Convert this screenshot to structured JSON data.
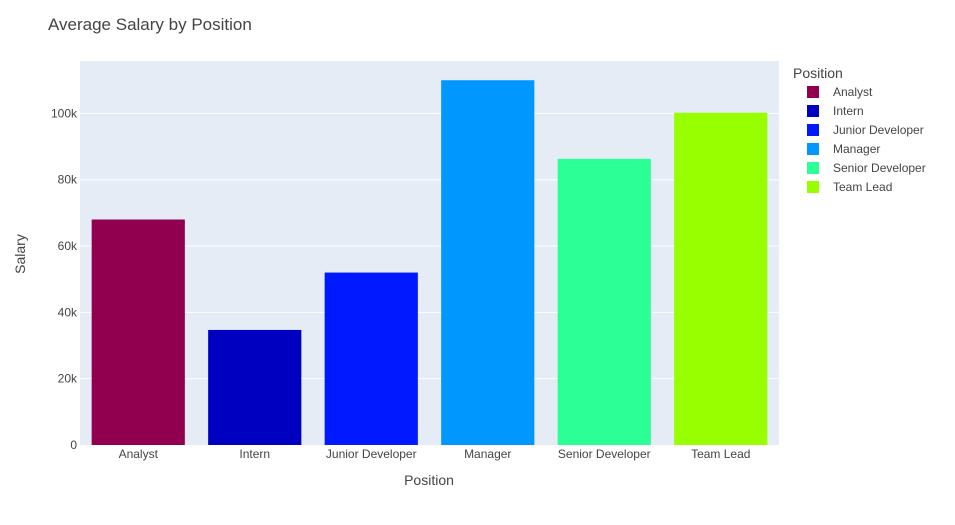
{
  "chart_data": {
    "type": "bar",
    "title": "Average Salary by Position",
    "xlabel": "Position",
    "ylabel": "Salary",
    "categories": [
      "Analyst",
      "Intern",
      "Junior Developer",
      "Manager",
      "Senior Developer",
      "Team Lead"
    ],
    "values": [
      68000,
      34700,
      52000,
      110000,
      86300,
      100200
    ],
    "colors": [
      "#91004f",
      "#0000c0",
      "#0019ff",
      "#0098ff",
      "#2cff96",
      "#97ff00"
    ],
    "ylim": [
      0,
      115800
    ],
    "yticks": [
      0,
      20000,
      40000,
      60000,
      80000,
      100000
    ],
    "ytick_labels": [
      "0",
      "20k",
      "40k",
      "60k",
      "80k",
      "100k"
    ],
    "grid": true,
    "plot_background": "#e5ecf6",
    "legend": {
      "title": "Position",
      "placement": "right",
      "entries": [
        "Analyst",
        "Intern",
        "Junior Developer",
        "Manager",
        "Senior Developer",
        "Team Lead"
      ]
    }
  }
}
